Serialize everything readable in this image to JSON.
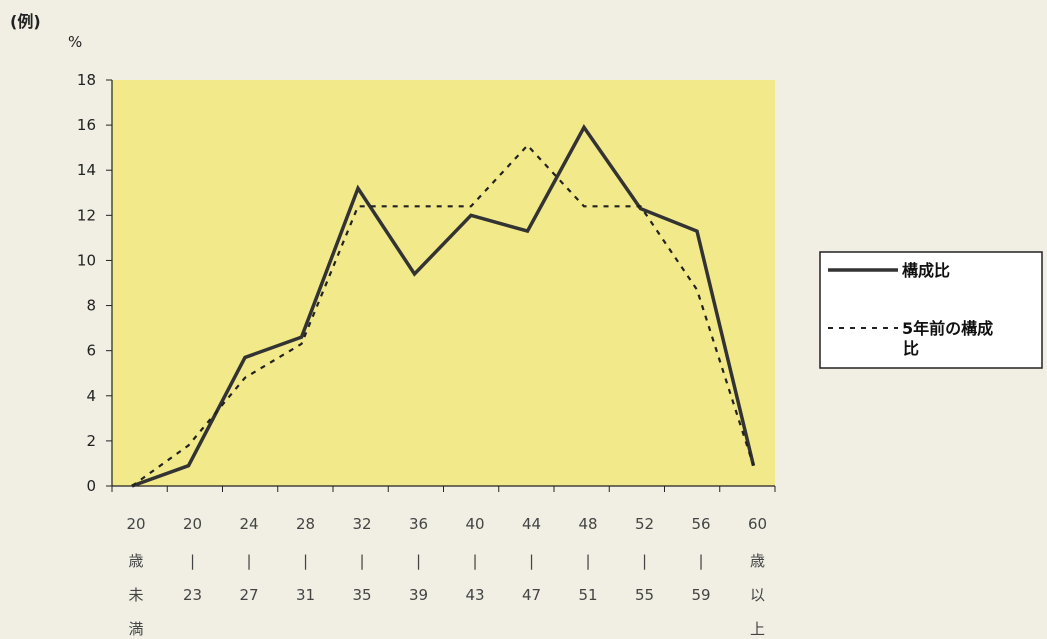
{
  "corner_label": "(例)",
  "chart_data": {
    "type": "line",
    "ylabel": "%",
    "ylim": [
      0,
      18
    ],
    "yticks": [
      0,
      2,
      4,
      6,
      8,
      10,
      12,
      14,
      16,
      18
    ],
    "grid": false,
    "legend_position": "right",
    "plot_background": "#f2ea8a",
    "categories": [
      {
        "label": [
          "20",
          "歳",
          "未",
          "満"
        ]
      },
      {
        "label": [
          "20",
          "|",
          "23"
        ]
      },
      {
        "label": [
          "24",
          "|",
          "27"
        ]
      },
      {
        "label": [
          "28",
          "|",
          "31"
        ]
      },
      {
        "label": [
          "32",
          "|",
          "35"
        ]
      },
      {
        "label": [
          "36",
          "|",
          "39"
        ]
      },
      {
        "label": [
          "40",
          "|",
          "43"
        ]
      },
      {
        "label": [
          "44",
          "|",
          "47"
        ]
      },
      {
        "label": [
          "48",
          "|",
          "51"
        ]
      },
      {
        "label": [
          "52",
          "|",
          "55"
        ]
      },
      {
        "label": [
          "56",
          "|",
          "59"
        ]
      },
      {
        "label": [
          "60",
          "歳",
          "以",
          "上"
        ]
      }
    ],
    "series": [
      {
        "name": "構成比",
        "style": "solid",
        "color": "#333333",
        "values": [
          0,
          0.9,
          5.7,
          6.6,
          13.2,
          9.4,
          12.0,
          11.3,
          15.9,
          12.3,
          11.3,
          0.9
        ]
      },
      {
        "name": "5年前の構成比",
        "style": "dashed",
        "color": "#222222",
        "values": [
          0,
          1.8,
          4.8,
          6.3,
          12.4,
          12.4,
          12.4,
          15.1,
          12.4,
          12.4,
          8.7,
          0.9
        ]
      }
    ]
  }
}
